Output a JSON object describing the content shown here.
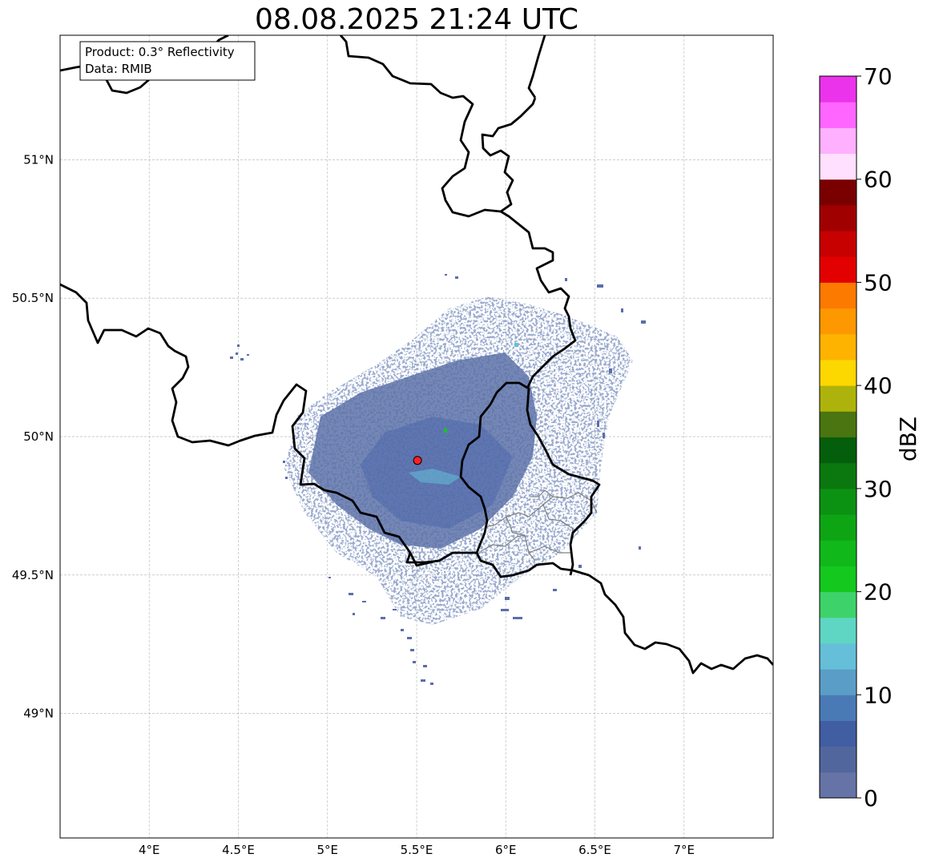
{
  "title": "08.08.2025 21:24 UTC",
  "info_box": {
    "line1": "Product: 0.3° Reflectivity",
    "line2": "Data: RMIB"
  },
  "map": {
    "lon_range": [
      3.5,
      7.5
    ],
    "lat_range": [
      48.55,
      51.45
    ],
    "gridlines": true,
    "lon_ticks": [
      4.0,
      4.5,
      5.0,
      5.5,
      6.0,
      6.5,
      7.0
    ],
    "lon_tick_labels": [
      "4°E",
      "4.5°E",
      "5°E",
      "5.5°E",
      "6°E",
      "6.5°E",
      "7°E"
    ],
    "lat_ticks": [
      49.0,
      49.5,
      50.0,
      50.5,
      51.0
    ],
    "lat_tick_labels": [
      "49°N",
      "49.5°N",
      "50°N",
      "50.5°N",
      "51°N"
    ],
    "radar_site": {
      "lon": 5.505,
      "lat": 49.914,
      "marker_color": "#ff2020"
    }
  },
  "colorbar": {
    "label": "dBZ",
    "min": 0,
    "max": 70,
    "step": 2.5,
    "tick_values": [
      0,
      10,
      20,
      30,
      40,
      50,
      60,
      70
    ],
    "tick_labels": [
      "0",
      "10",
      "20",
      "30",
      "40",
      "50",
      "60",
      "70"
    ],
    "colors": [
      "#6673a6",
      "#52669e",
      "#425ea3",
      "#4a7ab5",
      "#5a9ec8",
      "#65bfd9",
      "#5fd6c4",
      "#3ed36a",
      "#14c81e",
      "#10b81a",
      "#0ea515",
      "#0c9212",
      "#0a780f",
      "#055e0b",
      "#4a7510",
      "#aeb30c",
      "#fdd700",
      "#fdb300",
      "#fd9800",
      "#fd7a00",
      "#e30000",
      "#c70000",
      "#a10000",
      "#7a0000",
      "#ffe0ff",
      "#ffb0ff",
      "#ff66ff",
      "#ec33ec"
    ]
  }
}
